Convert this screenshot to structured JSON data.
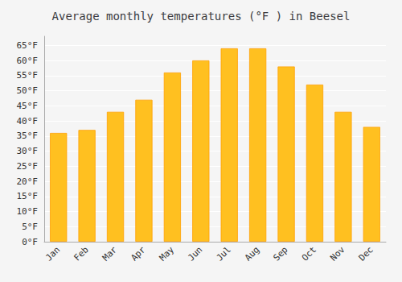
{
  "chart_data": {
    "type": "bar",
    "title": "Average monthly temperatures (°F ) in Beesel",
    "categories": [
      "Jan",
      "Feb",
      "Mar",
      "Apr",
      "May",
      "Jun",
      "Jul",
      "Aug",
      "Sep",
      "Oct",
      "Nov",
      "Dec"
    ],
    "values": [
      36,
      37,
      43,
      47,
      56,
      60,
      64,
      64,
      58,
      52,
      43,
      38
    ],
    "color": "#FFC020",
    "ylim": [
      0,
      68
    ],
    "yticks": [
      {
        "value": 0,
        "label": "0°F"
      },
      {
        "value": 5,
        "label": "5°F"
      },
      {
        "value": 10,
        "label": "10°F"
      },
      {
        "value": 15,
        "label": "15°F"
      },
      {
        "value": 20,
        "label": "20°F"
      },
      {
        "value": 25,
        "label": "25°F"
      },
      {
        "value": 30,
        "label": "30°F"
      },
      {
        "value": 35,
        "label": "35°F"
      },
      {
        "value": 40,
        "label": "40°F"
      },
      {
        "value": 45,
        "label": "45°F"
      },
      {
        "value": 50,
        "label": "50°F"
      },
      {
        "value": 55,
        "label": "55°F"
      },
      {
        "value": 60,
        "label": "60°F"
      },
      {
        "value": 65,
        "label": "65°F"
      }
    ],
    "grid": true
  }
}
